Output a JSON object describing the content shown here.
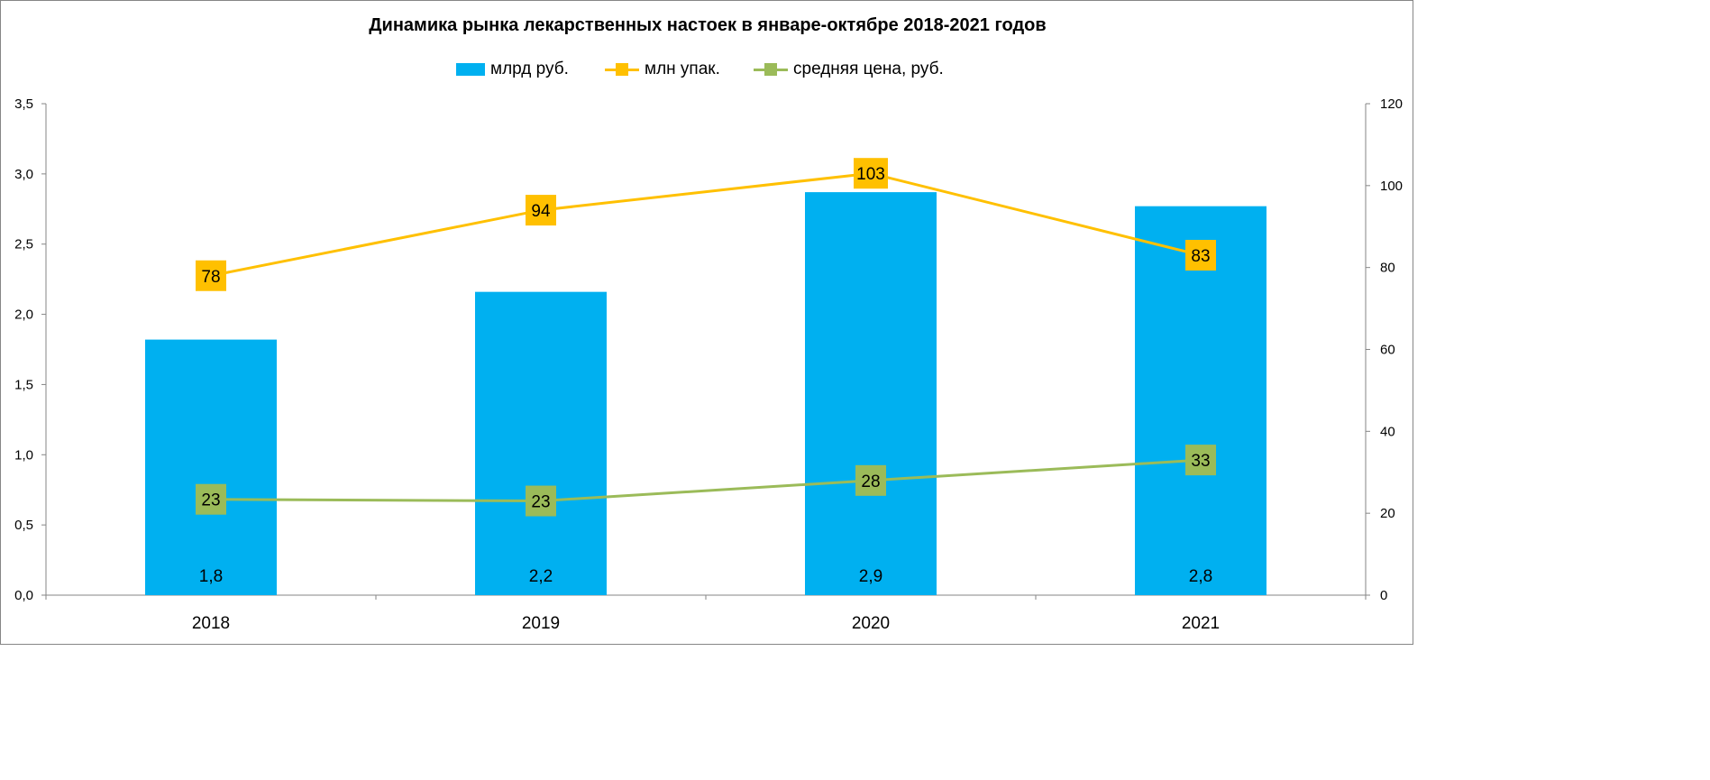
{
  "chart_data": {
    "type": "bar",
    "title": "Динамика рынка лекарственных настоек в январе-октябре 2018-2021 годов",
    "categories": [
      "2018",
      "2019",
      "2020",
      "2021"
    ],
    "series": [
      {
        "name": "млрд руб.",
        "type": "bar",
        "axis": "left",
        "color": "#00b0f0",
        "values": [
          1.82,
          2.16,
          2.87,
          2.77
        ],
        "labels": [
          "1,8",
          "2,2",
          "2,9",
          "2,8"
        ]
      },
      {
        "name": "млн упак.",
        "type": "line",
        "axis": "right",
        "color": "#ffc000",
        "values": [
          78,
          94,
          103,
          83
        ],
        "labels": [
          "78",
          "94",
          "103",
          "83"
        ]
      },
      {
        "name": "средняя цена, руб.",
        "type": "line",
        "axis": "right",
        "color": "#9bbb59",
        "values": [
          23.4,
          23,
          28,
          33
        ],
        "labels": [
          "23",
          "23",
          "28",
          "33"
        ]
      }
    ],
    "y_left": {
      "min": 0,
      "max": 3.5,
      "ticks": [
        "0,0",
        "0,5",
        "1,0",
        "1,5",
        "2,0",
        "2,5",
        "3,0",
        "3,5"
      ]
    },
    "y_right": {
      "min": 0,
      "max": 120,
      "ticks": [
        "0",
        "20",
        "40",
        "60",
        "80",
        "100",
        "120"
      ]
    },
    "grid": false,
    "legend_position": "top"
  }
}
